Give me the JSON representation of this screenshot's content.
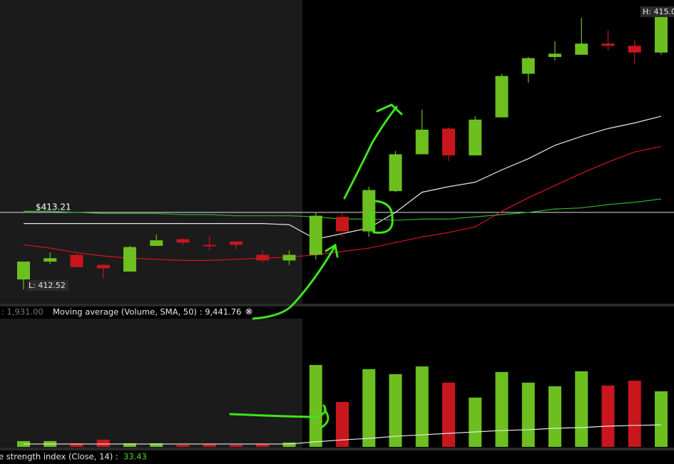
{
  "chart_data": [
    {
      "type": "candlestick",
      "open": [
        412.61,
        412.77,
        412.83,
        412.74,
        412.68,
        412.91,
        412.97,
        412.92,
        412.95,
        412.83,
        412.78,
        412.83,
        413.17,
        413.04,
        413.4,
        413.73,
        413.96,
        413.72,
        414.06,
        414.45,
        414.6,
        414.62,
        414.72,
        414.7,
        414.64
      ],
      "high": [
        412.77,
        412.85,
        412.84,
        412.74,
        412.91,
        413.01,
        412.98,
        413.0,
        412.95,
        412.87,
        412.87,
        413.21,
        413.2,
        413.44,
        413.76,
        414.13,
        413.97,
        414.07,
        414.45,
        414.6,
        414.74,
        414.95,
        414.84,
        414.75,
        415.0
      ],
      "low": [
        412.52,
        412.75,
        412.72,
        412.62,
        412.68,
        412.91,
        412.92,
        412.87,
        412.88,
        412.76,
        412.74,
        412.79,
        412.99,
        412.99,
        413.39,
        413.73,
        413.67,
        413.72,
        414.06,
        414.37,
        414.57,
        414.62,
        414.66,
        414.54,
        414.62
      ],
      "close": [
        412.77,
        412.8,
        412.72,
        412.71,
        412.9,
        412.96,
        412.94,
        412.91,
        412.92,
        412.78,
        412.83,
        413.18,
        413.04,
        413.41,
        413.73,
        413.95,
        413.72,
        414.04,
        414.43,
        414.59,
        414.63,
        414.72,
        414.7,
        414.64,
        414.96
      ],
      "up_color": "#6cbf1f",
      "down_color": "#c8161d",
      "ylim": [
        412.4,
        415.11
      ],
      "overlays": [
        {
          "color": "#e8e8e8",
          "values": [
            413.11,
            413.11,
            413.11,
            413.11,
            413.11,
            413.11,
            413.11,
            413.11,
            413.11,
            413.11,
            413.1,
            412.97,
            413.02,
            413.07,
            413.21,
            413.39,
            413.44,
            413.48,
            413.59,
            413.69,
            413.81,
            413.89,
            413.96,
            414.01,
            414.07
          ]
        },
        {
          "color": "#d4161c",
          "values": [
            412.92,
            412.89,
            412.85,
            412.82,
            412.8,
            412.79,
            412.78,
            412.78,
            412.79,
            412.8,
            412.81,
            412.83,
            412.86,
            412.89,
            412.94,
            412.99,
            413.03,
            413.08,
            413.22,
            413.34,
            413.45,
            413.56,
            413.66,
            413.75,
            413.8
          ]
        },
        {
          "color": "#2fae2a",
          "values": [
            413.22,
            413.22,
            413.21,
            413.2,
            413.2,
            413.2,
            413.19,
            413.19,
            413.18,
            413.18,
            413.18,
            413.17,
            413.15,
            413.15,
            413.14,
            413.15,
            413.15,
            413.17,
            413.19,
            413.21,
            413.24,
            413.25,
            413.28,
            413.3,
            413.33
          ]
        }
      ],
      "price_line": {
        "value": 413.21,
        "label": "$413.21"
      },
      "annotations": [
        "H: 415.0",
        "L: 412.52"
      ]
    },
    {
      "type": "bar",
      "values": [
        2400,
        2400,
        1500,
        3000,
        1500,
        1500,
        900,
        1200,
        900,
        1200,
        1800,
        33900,
        18600,
        32200,
        30100,
        33300,
        26600,
        20400,
        31000,
        26600,
        25100,
        31300,
        25400,
        27400,
        23000
      ],
      "average": {
        "color": "#e8e8e8",
        "values": [
          1200,
          1200,
          1200,
          1200,
          1200,
          1200,
          1200,
          1200,
          1200,
          1200,
          1200,
          2100,
          2900,
          3500,
          4400,
          5000,
          5600,
          6200,
          6800,
          7100,
          7700,
          8000,
          8600,
          8900,
          9100
        ]
      },
      "ylim": [
        0,
        53100
      ],
      "value_text": ": 1,931.00",
      "indicator": "Moving average (Volume, SMA, 50) : 9,441.76"
    },
    {
      "type": "indicator-label",
      "label": "e strength index (Close, 14) :",
      "value": "33.43"
    }
  ]
}
